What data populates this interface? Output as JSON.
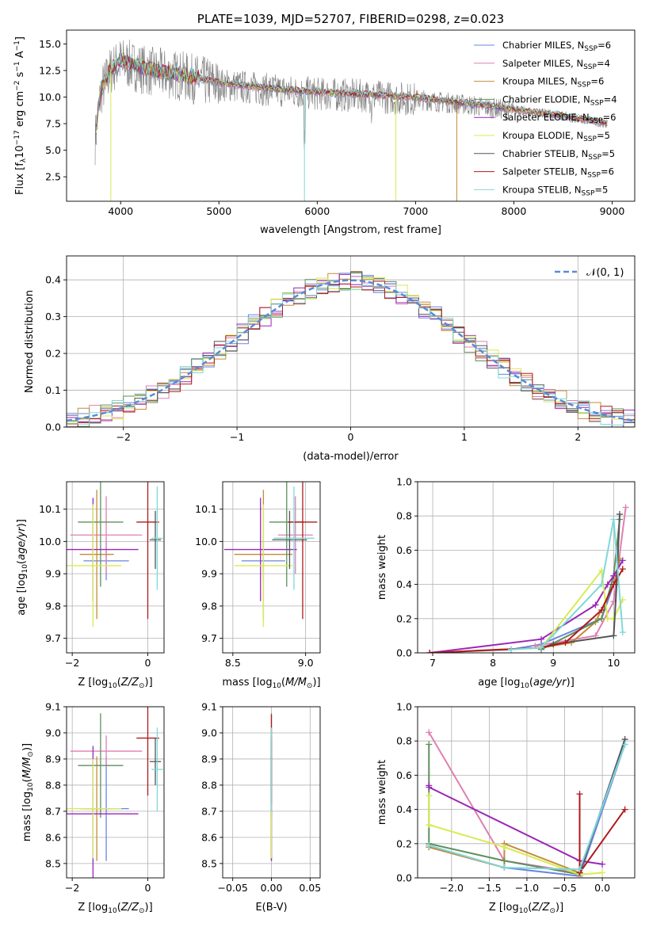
{
  "colors": {
    "chabrier_miles": "#6b84e0",
    "salpeter_miles": "#e07fb2",
    "kroupa_miles": "#c28b3a",
    "chabrier_elodie": "#5f8f5f",
    "salpeter_elodie": "#9a27b8",
    "kroupa_elodie": "#d7eb52",
    "chabrier_stelib": "#555555",
    "salpeter_stelib": "#b01a1a",
    "kroupa_stelib": "#7fd8d8",
    "gaussian": "#5a8ad6"
  },
  "chart_data": [
    {
      "id": "spectrum",
      "type": "line",
      "title": "PLATE=1039, MJD=52707, FIBERID=0298, z=0.023",
      "xlabel": "wavelength [Angstrom, rest frame]",
      "ylabel": "Flux [fλ10⁻¹⁷ erg cm⁻² s⁻¹ A⁻¹]",
      "xlim": [
        3450,
        9230
      ],
      "ylim": [
        0.2,
        16.3
      ],
      "xticks": [
        4000,
        5000,
        6000,
        7000,
        8000,
        9000
      ],
      "yticks": [
        2.5,
        5.0,
        7.5,
        10.0,
        12.5,
        15.0
      ],
      "legend": "top-right",
      "data_trend": {
        "x": [
          3740,
          3800,
          3900,
          4000,
          4100,
          4300,
          4600,
          5000,
          5500,
          6000,
          6500,
          7000,
          7500,
          8000,
          8500,
          8950
        ],
        "y": [
          6.0,
          10.5,
          12.5,
          13.3,
          13.0,
          12.4,
          12.0,
          11.2,
          10.7,
          10.3,
          10.1,
          9.8,
          9.3,
          8.7,
          8.1,
          7.4
        ]
      },
      "series_names": [
        "Chabrier MILES, N_SSP=6",
        "Salpeter MILES, N_SSP=4",
        "Kroupa MILES, N_SSP=6",
        "Chabrier ELODIE, N_SSP=4",
        "Salpeter ELODIE, N_SSP=6",
        "Kroupa ELODIE, N_SSP=5",
        "Chabrier STELIB, N_SSP=5",
        "Salpeter STELIB, N_SSP=6",
        "Kroupa STELIB, N_SSP=5"
      ]
    },
    {
      "id": "residuals",
      "type": "bar",
      "xlabel": "(data-model)/error",
      "ylabel": "Normed distribution",
      "xlim": [
        -2.5,
        2.5
      ],
      "ylim": [
        0,
        0.465
      ],
      "xticks": [
        -2,
        -1,
        0,
        1,
        2
      ],
      "yticks": [
        0.0,
        0.1,
        0.2,
        0.3,
        0.4
      ],
      "legend": "top-right",
      "gaussian_label": "𝒩(0, 1)",
      "bin_width": 0.1,
      "bin_start": -2.5
    },
    {
      "id": "age_vs_Z",
      "type": "scatter",
      "xlabel": "Z [log10(Z/Z☉)]",
      "ylabel": "age  [log10(age/yr)]",
      "xlim": [
        -2.15,
        0.43
      ],
      "ylim": [
        9.655,
        10.185
      ],
      "xticks": [
        -2,
        0
      ],
      "yticks": [
        9.7,
        9.8,
        9.9,
        10.0,
        10.1
      ],
      "points": [
        {
          "x": -1.1,
          "xerr": 0.6,
          "y": 9.94,
          "yerr": 0.06
        },
        {
          "x": -1.1,
          "xerr": 0.95,
          "y": 10.02,
          "yerr": 0.12
        },
        {
          "x": -1.35,
          "xerr": 0.45,
          "y": 9.96,
          "yerr": 0.2
        },
        {
          "x": -1.25,
          "xerr": 0.6,
          "y": 10.06,
          "yerr": 0.2
        },
        {
          "x": -1.45,
          "xerr": 1.2,
          "y": 9.975,
          "yerr": 0.16
        },
        {
          "x": -1.45,
          "xerr": 0.75,
          "y": 9.925,
          "yerr": 0.19
        },
        {
          "x": 0.2,
          "xerr": 0.15,
          "y": 10.005,
          "yerr": 0.09
        },
        {
          "x": 0.0,
          "xerr": 0.3,
          "y": 10.06,
          "yerr": 0.3
        },
        {
          "x": 0.25,
          "xerr": 0.15,
          "y": 10.01,
          "yerr": 0.16
        }
      ]
    },
    {
      "id": "age_vs_mass",
      "type": "scatter",
      "xlabel": "mass [log10(M/M☉)]",
      "ylabel": "",
      "xlim": [
        8.43,
        9.1
      ],
      "ylim": [
        9.655,
        10.185
      ],
      "xticks": [
        8.5,
        9.0
      ],
      "yticks": [
        9.7,
        9.8,
        9.9,
        10.0,
        10.1
      ],
      "points": [
        {
          "x": 8.71,
          "xerr": 0.15,
          "y": 9.94,
          "yerr": 0.06
        },
        {
          "x": 8.93,
          "xerr": 0.12,
          "y": 10.02,
          "yerr": 0.12
        },
        {
          "x": 8.71,
          "xerr": 0.2,
          "y": 9.96,
          "yerr": 0.2
        },
        {
          "x": 8.87,
          "xerr": 0.12,
          "y": 10.06,
          "yerr": 0.2
        },
        {
          "x": 8.69,
          "xerr": 0.25,
          "y": 9.975,
          "yerr": 0.16
        },
        {
          "x": 8.71,
          "xerr": 0.2,
          "y": 9.925,
          "yerr": 0.19
        },
        {
          "x": 8.89,
          "xerr": 0.12,
          "y": 10.005,
          "yerr": 0.09
        },
        {
          "x": 8.98,
          "xerr": 0.1,
          "y": 10.06,
          "yerr": 0.3
        },
        {
          "x": 8.92,
          "xerr": 0.14,
          "y": 10.01,
          "yerr": 0.16
        }
      ]
    },
    {
      "id": "weight_vs_age",
      "type": "line",
      "xlabel": "age  [log10(age/yr)]",
      "ylabel": "mass weight",
      "xlim": [
        6.75,
        10.35
      ],
      "ylim": [
        0.0,
        1.0
      ],
      "xticks": [
        7,
        8,
        9,
        10
      ],
      "yticks": [
        0.0,
        0.2,
        0.4,
        0.6,
        0.8,
        1.0
      ],
      "series": [
        {
          "x": [
            6.95,
            8.3,
            8.8,
            9.8,
            10.0,
            10.1
          ],
          "y": [
            0.0,
            0.02,
            0.05,
            0.2,
            0.4,
            0.54
          ]
        },
        {
          "x": [
            8.7,
            9.7,
            10.0,
            10.2
          ],
          "y": [
            0.04,
            0.1,
            0.3,
            0.85
          ]
        },
        {
          "x": [
            6.95,
            8.8,
            9.3,
            9.7,
            10.0,
            10.1
          ],
          "y": [
            0.0,
            0.03,
            0.06,
            0.18,
            0.4,
            0.55
          ]
        },
        {
          "x": [
            8.8,
            9.8,
            10.0,
            10.1
          ],
          "y": [
            0.02,
            0.2,
            0.45,
            0.78
          ]
        },
        {
          "x": [
            6.95,
            8.8,
            9.7,
            9.9,
            10.0,
            10.15
          ],
          "y": [
            0.0,
            0.08,
            0.28,
            0.4,
            0.45,
            0.54
          ]
        },
        {
          "x": [
            8.8,
            9.8,
            9.9,
            10.0,
            10.15
          ],
          "y": [
            0.03,
            0.48,
            0.2,
            0.2,
            0.31
          ]
        },
        {
          "x": [
            8.8,
            9.0,
            10.0,
            10.05,
            10.1
          ],
          "y": [
            0.03,
            0.05,
            0.1,
            0.4,
            0.81
          ]
        },
        {
          "x": [
            6.95,
            8.8,
            9.2,
            9.8,
            10.0,
            10.15
          ],
          "y": [
            0.0,
            0.03,
            0.06,
            0.25,
            0.4,
            0.49
          ]
        },
        {
          "x": [
            8.3,
            8.8,
            9.8,
            10.0,
            10.15
          ],
          "y": [
            0.02,
            0.03,
            0.4,
            0.78,
            0.12
          ]
        }
      ]
    },
    {
      "id": "mass_vs_Z",
      "type": "scatter",
      "xlabel": "Z [log10(Z/Z☉)]",
      "ylabel": "mass [log10(M/M☉)]",
      "xlim": [
        -2.15,
        0.43
      ],
      "ylim": [
        8.445,
        9.1
      ],
      "xticks": [
        -2,
        0
      ],
      "yticks": [
        8.5,
        8.6,
        8.7,
        8.8,
        8.9,
        9.0,
        9.1
      ],
      "points": [
        {
          "x": -1.1,
          "xerr": 0.6,
          "y": 8.71,
          "yerr": 0.2
        },
        {
          "x": -1.1,
          "xerr": 0.95,
          "y": 8.93,
          "yerr": 0.06
        },
        {
          "x": -1.35,
          "xerr": 0.45,
          "y": 8.71,
          "yerr": 0.2
        },
        {
          "x": -1.25,
          "xerr": 0.6,
          "y": 8.875,
          "yerr": 0.2
        },
        {
          "x": -1.45,
          "xerr": 1.2,
          "y": 8.69,
          "yerr": 0.26
        },
        {
          "x": -1.45,
          "xerr": 0.75,
          "y": 8.71,
          "yerr": 0.19
        },
        {
          "x": 0.2,
          "xerr": 0.15,
          "y": 8.89,
          "yerr": 0.09
        },
        {
          "x": 0.0,
          "xerr": 0.3,
          "y": 8.98,
          "yerr": 0.22
        },
        {
          "x": 0.25,
          "xerr": 0.15,
          "y": 8.86,
          "yerr": 0.16
        }
      ]
    },
    {
      "id": "mass_vs_ebv",
      "type": "scatter",
      "xlabel": "E(B-V)",
      "ylabel": "",
      "xlim": [
        -0.063,
        0.063
      ],
      "ylim": [
        8.445,
        9.1
      ],
      "xticks": [
        -0.05,
        0.0,
        0.05
      ],
      "yticks": [
        8.5,
        8.6,
        8.7,
        8.8,
        8.9,
        9.0,
        9.1
      ],
      "points": [
        {
          "x": 0.0,
          "xerr": 0.0,
          "y": 8.71,
          "yerr": 0.2
        },
        {
          "x": 0.0,
          "xerr": 0.0,
          "y": 8.93,
          "yerr": 0.06
        },
        {
          "x": 0.0,
          "xerr": 0.0,
          "y": 8.71,
          "yerr": 0.2
        },
        {
          "x": 0.0,
          "xerr": 0.0,
          "y": 8.875,
          "yerr": 0.2
        },
        {
          "x": 0.0,
          "xerr": 0.0,
          "y": 8.69,
          "yerr": 0.18
        },
        {
          "x": 0.0,
          "xerr": 0.0,
          "y": 8.71,
          "yerr": 0.19
        },
        {
          "x": 0.0,
          "xerr": 0.0,
          "y": 8.89,
          "yerr": 0.09
        },
        {
          "x": 0.0,
          "xerr": 0.0,
          "y": 8.9,
          "yerr": 0.17
        },
        {
          "x": 0.0,
          "xerr": 0.0,
          "y": 8.86,
          "yerr": 0.16
        }
      ]
    },
    {
      "id": "weight_vs_Z",
      "type": "line",
      "xlabel": "Z [log10(Z/Z☉)]",
      "ylabel": "mass weight",
      "xlim": [
        -2.45,
        0.43
      ],
      "ylim": [
        0.0,
        1.0
      ],
      "xticks": [
        -2.0,
        -1.5,
        -1.0,
        -0.5,
        0.0
      ],
      "yticks": [
        0.0,
        0.2,
        0.4,
        0.6,
        0.8,
        1.0
      ],
      "series": [
        {
          "x": [
            -2.3,
            -1.3,
            -0.3,
            0.3
          ],
          "y": [
            0.18,
            0.06,
            0.01,
            0.78
          ]
        },
        {
          "x": [
            -2.3,
            -1.3,
            -0.3,
            -0.3
          ],
          "y": [
            0.85,
            0.1,
            0.03,
            0.0
          ]
        },
        {
          "x": [
            -2.3,
            -1.3,
            -1.3,
            -0.3
          ],
          "y": [
            0.18,
            0.06,
            0.2,
            0.03
          ]
        },
        {
          "x": [
            -2.3,
            -2.3,
            -1.3,
            -0.3
          ],
          "y": [
            0.78,
            0.2,
            0.1,
            0.02
          ]
        },
        {
          "x": [
            -2.3,
            -2.3,
            -0.3,
            0.0
          ],
          "y": [
            0.54,
            0.53,
            0.1,
            0.08
          ]
        },
        {
          "x": [
            -2.3,
            -2.3,
            -1.3,
            -0.3,
            0.0
          ],
          "y": [
            0.48,
            0.31,
            0.18,
            0.02,
            0.03
          ]
        },
        {
          "x": [
            -0.3,
            0.3
          ],
          "y": [
            0.03,
            0.81
          ]
        },
        {
          "x": [
            -0.3,
            -0.3,
            0.3
          ],
          "y": [
            0.49,
            0.03,
            0.4
          ]
        },
        {
          "x": [
            -2.3,
            -1.3,
            -0.3,
            0.3
          ],
          "y": [
            0.19,
            0.06,
            0.05,
            0.78
          ]
        }
      ]
    }
  ]
}
